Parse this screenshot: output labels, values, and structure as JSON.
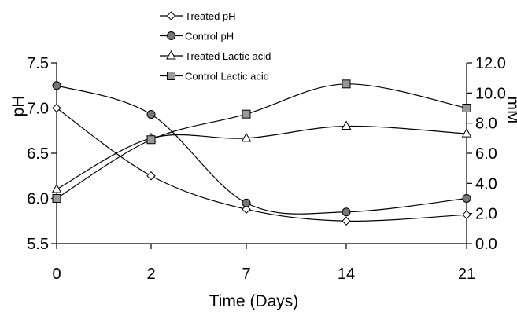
{
  "chart_data": {
    "type": "line",
    "categories": [
      "0",
      "2",
      "7",
      "14",
      "21"
    ],
    "xlabel": "Time (Days)",
    "ylabel_left": "pH",
    "ylabel_right": "mM",
    "ylim_left": [
      5.5,
      7.5
    ],
    "ylim_right": [
      0.0,
      12.0
    ],
    "yticks_left": [
      "5.5",
      "6.0",
      "6.5",
      "7.0",
      "7.5"
    ],
    "yticks_right": [
      "0.0",
      "2.0",
      "4.0",
      "6.0",
      "8.0",
      "10.0",
      "12.0"
    ],
    "grid": false,
    "legend_position": "top-center",
    "series": [
      {
        "name": "Treated pH",
        "axis": "left",
        "marker": "diamond",
        "values": [
          7.0,
          6.25,
          5.88,
          5.75,
          5.82
        ]
      },
      {
        "name": "Control pH",
        "axis": "left",
        "marker": "circle",
        "values": [
          7.25,
          6.93,
          5.95,
          5.85,
          6.0
        ]
      },
      {
        "name": "Treated Lactic acid",
        "axis": "right",
        "marker": "triangle",
        "values": [
          3.6,
          7.0,
          7.0,
          7.8,
          7.3
        ]
      },
      {
        "name": "Control Lactic acid",
        "axis": "right",
        "marker": "square",
        "values": [
          3.0,
          6.9,
          8.6,
          10.6,
          9.0
        ]
      }
    ]
  }
}
